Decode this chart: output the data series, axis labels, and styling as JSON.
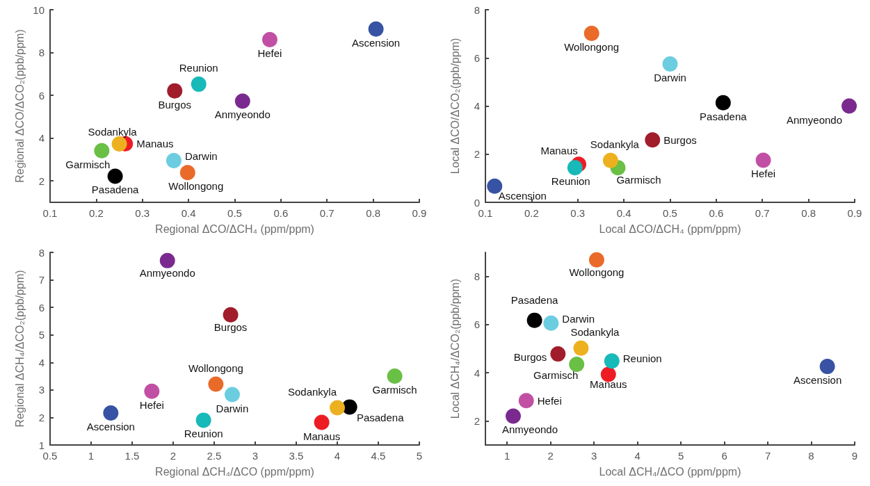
{
  "chart_data": [
    {
      "type": "scatter",
      "xlabel": "Regional ΔCO/ΔCH₄ (ppm/ppm)",
      "ylabel": "Regional ΔCO/ΔCO₂(ppb/ppm)",
      "xlim": [
        0.1,
        0.9
      ],
      "xticks": [
        0.1,
        0.2,
        0.3,
        0.4,
        0.5,
        0.6,
        0.7,
        0.8,
        0.9
      ],
      "ylim": [
        1,
        10
      ],
      "yticks": [
        2,
        4,
        6,
        8,
        10
      ],
      "marker": "circle",
      "series": [
        {
          "name": "Ascension",
          "color": "#3853a4",
          "x": [
            0.806
          ],
          "values": [
            9.1
          ]
        },
        {
          "name": "Hefei",
          "color": "#c150a4",
          "x": [
            0.576
          ],
          "values": [
            8.6
          ]
        },
        {
          "name": "Reunion",
          "color": "#17b9b9",
          "x": [
            0.422
          ],
          "values": [
            6.52
          ]
        },
        {
          "name": "Burgos",
          "color": "#a11d2b",
          "x": [
            0.37
          ],
          "values": [
            6.21
          ]
        },
        {
          "name": "Anmyeondo",
          "color": "#7a2a8e",
          "x": [
            0.517
          ],
          "values": [
            5.73
          ]
        },
        {
          "name": "Sodankyla",
          "color": "#edb120",
          "x": [
            0.25
          ],
          "values": [
            3.73
          ]
        },
        {
          "name": "Manaus",
          "color": "#ed1c24",
          "x": [
            0.263
          ],
          "values": [
            3.74
          ]
        },
        {
          "name": "Garmisch",
          "color": "#6abf45",
          "x": [
            0.212
          ],
          "values": [
            3.41
          ]
        },
        {
          "name": "Darwin",
          "color": "#6ccde0",
          "x": [
            0.368
          ],
          "values": [
            2.95
          ]
        },
        {
          "name": "Wollongong",
          "color": "#ea6a2a",
          "x": [
            0.398
          ],
          "values": [
            2.39
          ]
        },
        {
          "name": "Pasadena",
          "color": "#000000",
          "x": [
            0.241
          ],
          "values": [
            2.22
          ]
        }
      ]
    },
    {
      "type": "scatter",
      "xlabel": "Local ΔCO/ΔCH₄ (ppm/ppm)",
      "ylabel": "Local ΔCO/ΔCO₂(ppb/ppm)",
      "xlim": [
        0.1,
        0.9
      ],
      "xticks": [
        0.1,
        0.2,
        0.3,
        0.4,
        0.5,
        0.6,
        0.7,
        0.8,
        0.9
      ],
      "ylim": [
        0,
        8
      ],
      "yticks": [
        0,
        2,
        4,
        6,
        8
      ],
      "marker": "circle",
      "series": [
        {
          "name": "Ascension",
          "color": "#3853a4",
          "x": [
            0.12
          ],
          "values": [
            0.67
          ]
        },
        {
          "name": "Hefei",
          "color": "#c150a4",
          "x": [
            0.702
          ],
          "values": [
            1.75
          ]
        },
        {
          "name": "Reunion",
          "color": "#17b9b9",
          "x": [
            0.294
          ],
          "values": [
            1.44
          ]
        },
        {
          "name": "Burgos",
          "color": "#a11d2b",
          "x": [
            0.462
          ],
          "values": [
            2.59
          ]
        },
        {
          "name": "Anmyeondo",
          "color": "#7a2a8e",
          "x": [
            0.888
          ],
          "values": [
            4.0
          ]
        },
        {
          "name": "Sodankyla",
          "color": "#edb120",
          "x": [
            0.371
          ],
          "values": [
            1.74
          ]
        },
        {
          "name": "Manaus",
          "color": "#ed1c24",
          "x": [
            0.302
          ],
          "values": [
            1.58
          ]
        },
        {
          "name": "Garmisch",
          "color": "#6abf45",
          "x": [
            0.387
          ],
          "values": [
            1.44
          ]
        },
        {
          "name": "Darwin",
          "color": "#6ccde0",
          "x": [
            0.5
          ],
          "values": [
            5.75
          ]
        },
        {
          "name": "Wollongong",
          "color": "#ea6a2a",
          "x": [
            0.33
          ],
          "values": [
            7.02
          ]
        },
        {
          "name": "Pasadena",
          "color": "#000000",
          "x": [
            0.615
          ],
          "values": [
            4.14
          ]
        }
      ]
    },
    {
      "type": "scatter",
      "xlabel": "Regional ΔCH₄/ΔCO (ppm/ppm)",
      "ylabel": "Regional ΔCH₄/ΔCO₂(ppb/ppm)",
      "xlim": [
        0.5,
        5
      ],
      "xticks": [
        0.5,
        1,
        1.5,
        2,
        2.5,
        3,
        3.5,
        4,
        4.5,
        5
      ],
      "ylim": [
        1,
        8
      ],
      "yticks": [
        1,
        2,
        3,
        4,
        5,
        6,
        7,
        8
      ],
      "marker": "circle",
      "series": [
        {
          "name": "Ascension",
          "color": "#3853a4",
          "x": [
            1.24
          ],
          "values": [
            2.16
          ]
        },
        {
          "name": "Hefei",
          "color": "#c150a4",
          "x": [
            1.74
          ],
          "values": [
            2.95
          ]
        },
        {
          "name": "Reunion",
          "color": "#17b9b9",
          "x": [
            2.37
          ],
          "values": [
            1.9
          ]
        },
        {
          "name": "Burgos",
          "color": "#a11d2b",
          "x": [
            2.7
          ],
          "values": [
            5.73
          ]
        },
        {
          "name": "Anmyeondo",
          "color": "#7a2a8e",
          "x": [
            1.93
          ],
          "values": [
            7.7
          ]
        },
        {
          "name": "Sodankyla",
          "color": "#edb120",
          "x": [
            4.0
          ],
          "values": [
            2.35
          ]
        },
        {
          "name": "Manaus",
          "color": "#ed1c24",
          "x": [
            3.81
          ],
          "values": [
            1.82
          ]
        },
        {
          "name": "Garmisch",
          "color": "#6abf45",
          "x": [
            4.7
          ],
          "values": [
            3.5
          ]
        },
        {
          "name": "Darwin",
          "color": "#6ccde0",
          "x": [
            2.72
          ],
          "values": [
            2.83
          ]
        },
        {
          "name": "Wollongong",
          "color": "#ea6a2a",
          "x": [
            2.52
          ],
          "values": [
            3.21
          ]
        },
        {
          "name": "Pasadena",
          "color": "#000000",
          "x": [
            4.15
          ],
          "values": [
            2.38
          ]
        }
      ]
    },
    {
      "type": "scatter",
      "xlabel": "Local ΔCH₄/ΔCO (ppm/ppm)",
      "ylabel": "Local ΔCH₄/ΔCO₂(ppb/ppm)",
      "xlim": [
        0.5,
        9
      ],
      "xticks": [
        1,
        2,
        3,
        4,
        5,
        6,
        7,
        8,
        9
      ],
      "ylim": [
        1,
        9
      ],
      "yticks": [
        2,
        4,
        6,
        8
      ],
      "marker": "circle",
      "series": [
        {
          "name": "Ascension",
          "color": "#3853a4",
          "x": [
            8.37
          ],
          "values": [
            4.26
          ]
        },
        {
          "name": "Hefei",
          "color": "#c150a4",
          "x": [
            1.44
          ],
          "values": [
            2.84
          ]
        },
        {
          "name": "Reunion",
          "color": "#17b9b9",
          "x": [
            3.41
          ],
          "values": [
            4.49
          ]
        },
        {
          "name": "Burgos",
          "color": "#a11d2b",
          "x": [
            2.17
          ],
          "values": [
            4.78
          ]
        },
        {
          "name": "Anmyeondo",
          "color": "#7a2a8e",
          "x": [
            1.14
          ],
          "values": [
            2.2
          ]
        },
        {
          "name": "Sodankyla",
          "color": "#edb120",
          "x": [
            2.7
          ],
          "values": [
            5.02
          ]
        },
        {
          "name": "Manaus",
          "color": "#ed1c24",
          "x": [
            3.33
          ],
          "values": [
            3.93
          ]
        },
        {
          "name": "Garmisch",
          "color": "#6abf45",
          "x": [
            2.6
          ],
          "values": [
            4.35
          ]
        },
        {
          "name": "Darwin",
          "color": "#6ccde0",
          "x": [
            2.01
          ],
          "values": [
            6.06
          ]
        },
        {
          "name": "Wollongong",
          "color": "#ea6a2a",
          "x": [
            3.06
          ],
          "values": [
            8.69
          ]
        },
        {
          "name": "Pasadena",
          "color": "#000000",
          "x": [
            1.63
          ],
          "values": [
            6.18
          ]
        }
      ]
    }
  ]
}
